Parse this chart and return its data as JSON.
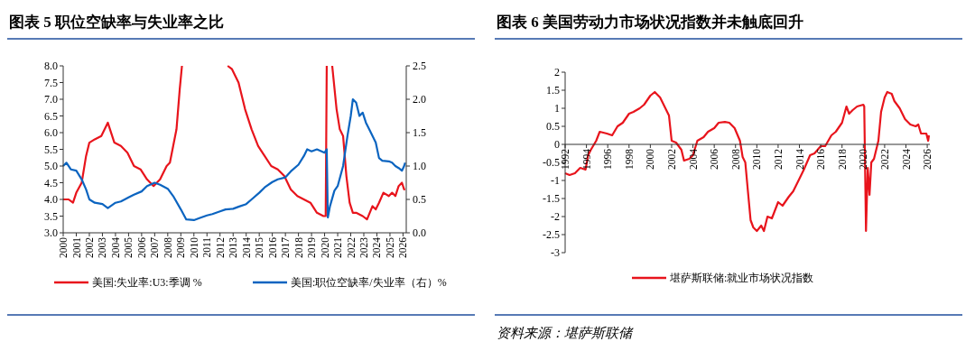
{
  "chart_data": [
    {
      "type": "line",
      "title": "图表 5  职位空缺率与失业率之比",
      "legend": "bottom",
      "grid": false,
      "xlim": [
        "2000-01",
        "2026-04"
      ],
      "xticks": [
        "2000",
        "2001",
        "2002",
        "2003",
        "2004",
        "2005",
        "2006",
        "2007",
        "2008",
        "2009",
        "2010",
        "2011",
        "2012",
        "2013",
        "2014",
        "2015",
        "2016",
        "2017",
        "2018",
        "2019",
        "2020",
        "2021",
        "2022",
        "2023",
        "2024",
        "2025",
        "2026"
      ],
      "ylim": [
        3,
        8
      ],
      "yticks": [
        {
          "value": 3,
          "label": "3.0"
        },
        {
          "value": 3.5,
          "label": "3.5"
        },
        {
          "value": 4,
          "label": "4.0"
        },
        {
          "value": 4.5,
          "label": "4.5"
        },
        {
          "value": 5,
          "label": "5.0"
        },
        {
          "value": 5.5,
          "label": "5.5"
        },
        {
          "value": 6,
          "label": "6.0"
        },
        {
          "value": 6.5,
          "label": "6.5"
        },
        {
          "value": 7,
          "label": "7.0"
        },
        {
          "value": 7.5,
          "label": "7.5"
        },
        {
          "value": 8,
          "label": "8.0"
        }
      ],
      "y2lim": [
        0,
        2.5
      ],
      "y2ticks": [
        {
          "value": 0,
          "label": "0.0"
        },
        {
          "value": 0.5,
          "label": "0.5"
        },
        {
          "value": 1,
          "label": "1.0"
        },
        {
          "value": 1.5,
          "label": "1.5"
        },
        {
          "value": 2,
          "label": "2.0"
        },
        {
          "value": 2.5,
          "label": "2.5"
        }
      ],
      "series": [
        {
          "name": "美国:失业率:U3:季调 %",
          "color": "#e8141c",
          "x": [
            "2000-01",
            "2000-06",
            "2000-10",
            "2001-01",
            "2001-06",
            "2001-10",
            "2002-01",
            "2002-06",
            "2002-12",
            "2003-06",
            "2003-12",
            "2004-06",
            "2004-12",
            "2005-06",
            "2005-12",
            "2006-06",
            "2006-12",
            "2007-06",
            "2007-12",
            "2008-03",
            "2008-06",
            "2008-09",
            "2008-12",
            "2009-02",
            "2010-06",
            "2012-08",
            "2012-12",
            "2013-06",
            "2013-12",
            "2014-06",
            "2014-12",
            "2015-06",
            "2015-12",
            "2016-06",
            "2016-12",
            "2017-06",
            "2017-12",
            "2018-06",
            "2018-12",
            "2019-06",
            "2019-12",
            "2020-02",
            "2020-03",
            "2020-05",
            "2020-08",
            "2020-12",
            "2021-03",
            "2021-06",
            "2021-09",
            "2021-12",
            "2022-03",
            "2022-06",
            "2022-12",
            "2023-04",
            "2023-09",
            "2023-12",
            "2024-03",
            "2024-07",
            "2024-12",
            "2025-03",
            "2025-06",
            "2025-09",
            "2025-12",
            "2026-02",
            "2026-03"
          ],
          "values": [
            4.0,
            4.0,
            3.9,
            4.2,
            4.5,
            5.3,
            5.7,
            5.8,
            5.9,
            6.3,
            5.7,
            5.6,
            5.4,
            5.0,
            4.9,
            4.6,
            4.4,
            4.6,
            5.0,
            5.1,
            5.6,
            6.1,
            7.3,
            8.0,
            null,
            8.0,
            7.9,
            7.5,
            6.7,
            6.1,
            5.6,
            5.3,
            5.0,
            4.9,
            4.7,
            4.3,
            4.1,
            4.0,
            3.9,
            3.6,
            3.5,
            3.5,
            8.0,
            null,
            8.0,
            6.7,
            6.1,
            5.9,
            4.7,
            3.9,
            3.6,
            3.6,
            3.5,
            3.4,
            3.8,
            3.7,
            3.9,
            4.2,
            4.1,
            4.2,
            4.1,
            4.4,
            4.5,
            4.3,
            4.3
          ]
        },
        {
          "name": "美国:职位空缺率/失业率（右）%",
          "color": "#0b64c0",
          "axis": "y2",
          "x": [
            "2000-01",
            "2000-04",
            "2000-08",
            "2001-01",
            "2001-06",
            "2001-10",
            "2002-01",
            "2002-06",
            "2003-01",
            "2003-06",
            "2004-01",
            "2004-06",
            "2005-01",
            "2005-06",
            "2006-01",
            "2006-06",
            "2007-01",
            "2007-06",
            "2008-01",
            "2008-06",
            "2009-01",
            "2009-06",
            "2010-01",
            "2010-06",
            "2011-01",
            "2011-06",
            "2012-01",
            "2012-06",
            "2013-01",
            "2013-06",
            "2014-01",
            "2014-06",
            "2015-01",
            "2015-06",
            "2016-01",
            "2016-06",
            "2017-01",
            "2017-06",
            "2018-01",
            "2018-06",
            "2018-09",
            "2019-01",
            "2019-06",
            "2020-01",
            "2020-03",
            "2020-04",
            "2020-06",
            "2020-10",
            "2021-01",
            "2021-06",
            "2021-10",
            "2022-01",
            "2022-03",
            "2022-06",
            "2022-09",
            "2022-12",
            "2023-03",
            "2023-06",
            "2023-12",
            "2024-03",
            "2024-06",
            "2024-12",
            "2025-03",
            "2025-06",
            "2025-09",
            "2025-12",
            "2026-02",
            "2026-03"
          ],
          "values": [
            1.0,
            1.05,
            0.95,
            0.93,
            0.8,
            0.65,
            0.5,
            0.45,
            0.43,
            0.37,
            0.45,
            0.47,
            0.53,
            0.57,
            0.62,
            0.7,
            0.75,
            0.72,
            0.66,
            0.55,
            0.35,
            0.2,
            0.19,
            0.22,
            0.26,
            0.28,
            0.32,
            0.35,
            0.36,
            0.39,
            0.43,
            0.5,
            0.6,
            0.68,
            0.76,
            0.8,
            0.83,
            0.92,
            1.02,
            1.15,
            1.25,
            1.22,
            1.25,
            1.2,
            1.25,
            0.23,
            0.4,
            0.63,
            0.7,
            1.0,
            1.45,
            1.75,
            2.0,
            1.95,
            1.75,
            1.8,
            1.65,
            1.55,
            1.35,
            1.12,
            1.08,
            1.07,
            1.05,
            1.0,
            0.97,
            0.93,
            1.0,
            1.05
          ]
        }
      ]
    },
    {
      "type": "line",
      "title": "图表 6  美国劳动力市场状况指数并未触底回升",
      "legend": "bottom",
      "grid": false,
      "annotations": [
        "资料来源：堪萨斯联储"
      ],
      "xlim": [
        "1992-01",
        "2026-04"
      ],
      "xticks": [
        "1992",
        "1994",
        "1996",
        "1998",
        "2000",
        "2002",
        "2004",
        "2006",
        "2008",
        "2010",
        "2012",
        "2014",
        "2016",
        "2018",
        "2020",
        "2022",
        "2024",
        "2026"
      ],
      "ylim": [
        -3,
        2
      ],
      "yticks": [
        -3,
        -2.5,
        -2,
        -1.5,
        -1,
        -0.5,
        0,
        0.5,
        1,
        1.5,
        2
      ],
      "series": [
        {
          "name": "堪萨斯联储:就业市场状况指数",
          "color": "#e8141c",
          "x": [
            "1992-01",
            "1992-06",
            "1992-12",
            "1993-06",
            "1993-12",
            "1994-03",
            "1994-06",
            "1994-12",
            "1995-04",
            "1995-12",
            "1996-06",
            "1996-12",
            "1997-06",
            "1998-01",
            "1998-06",
            "1999-01",
            "1999-06",
            "2000-01",
            "2000-06",
            "2000-12",
            "2001-06",
            "2001-10",
            "2002-01",
            "2002-06",
            "2002-12",
            "2003-03",
            "2003-09",
            "2004-01",
            "2004-06",
            "2005-01",
            "2005-06",
            "2006-01",
            "2006-06",
            "2007-01",
            "2007-06",
            "2007-12",
            "2008-06",
            "2008-09",
            "2008-12",
            "2009-03",
            "2009-06",
            "2009-09",
            "2010-01",
            "2010-06",
            "2010-09",
            "2011-01",
            "2011-06",
            "2012-01",
            "2012-06",
            "2013-01",
            "2013-06",
            "2014-01",
            "2014-06",
            "2015-01",
            "2015-06",
            "2016-01",
            "2016-06",
            "2017-01",
            "2017-06",
            "2018-01",
            "2018-06",
            "2018-09",
            "2019-01",
            "2019-06",
            "2020-01",
            "2020-02",
            "2020-03",
            "2020-04",
            "2020-06",
            "2020-08",
            "2020-10",
            "2021-01",
            "2021-06",
            "2021-09",
            "2022-01",
            "2022-04",
            "2022-09",
            "2022-12",
            "2023-06",
            "2023-12",
            "2024-06",
            "2024-12",
            "2025-03",
            "2025-06",
            "2025-12",
            "2026-02",
            "2026-03"
          ],
          "values": [
            -0.8,
            -0.85,
            -0.8,
            -0.65,
            -0.7,
            -0.3,
            -0.15,
            0.1,
            0.35,
            0.3,
            0.25,
            0.5,
            0.6,
            0.85,
            0.9,
            1.0,
            1.1,
            1.35,
            1.45,
            1.3,
            1.0,
            0.8,
            0.1,
            0.05,
            -0.15,
            -0.45,
            -0.4,
            -0.3,
            0.1,
            0.2,
            0.35,
            0.45,
            0.6,
            0.62,
            0.6,
            0.45,
            0.1,
            -0.35,
            -0.5,
            -1.3,
            -2.1,
            -2.3,
            -2.4,
            -2.25,
            -2.4,
            -2.0,
            -2.05,
            -1.6,
            -1.7,
            -1.45,
            -1.3,
            -0.95,
            -0.7,
            -0.3,
            -0.25,
            -0.05,
            -0.05,
            0.25,
            0.35,
            0.6,
            1.05,
            0.85,
            0.95,
            1.05,
            1.1,
            1.05,
            -0.6,
            -2.4,
            -0.65,
            -1.4,
            -0.5,
            -0.4,
            0.1,
            0.9,
            1.3,
            1.45,
            1.4,
            1.2,
            1.0,
            0.7,
            0.55,
            0.5,
            0.55,
            0.3,
            0.3,
            0.1,
            0.25
          ]
        }
      ]
    }
  ]
}
